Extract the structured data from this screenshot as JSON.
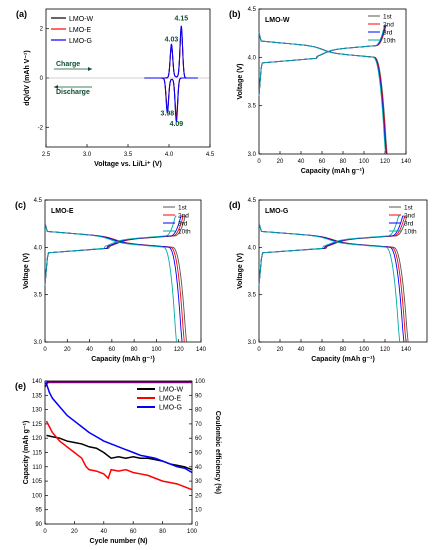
{
  "chart_data": [
    {
      "panel_label": "(a)",
      "type": "line",
      "title": "",
      "xlabel": "Voltage vs. Li/Li⁺ (V)",
      "ylabel": "dQ/dV (mAh V⁻¹)",
      "xlim": [
        2.5,
        4.5
      ],
      "ylim": [
        -2.8,
        2.8
      ],
      "xticks": [
        2.5,
        3.0,
        3.5,
        4.0,
        4.5
      ],
      "yticks": [
        -2,
        0,
        2
      ],
      "legend": {
        "placement": "top-left"
      },
      "annotations": [
        "Charge",
        "Discharge"
      ],
      "peak_labels": [
        {
          "text": "4.15",
          "x": 4.15,
          "y": 2.33
        },
        {
          "text": "4.03",
          "x": 4.03,
          "y": 1.48
        },
        {
          "text": "3.98",
          "x": 3.98,
          "y": -1.53
        },
        {
          "text": "4.09",
          "x": 4.09,
          "y": -1.95
        }
      ],
      "series": [
        {
          "name": "LMO-W",
          "color": "#000000",
          "charge": [
            [
              4.03,
              1.25
            ],
            [
              4.15,
              1.95
            ]
          ],
          "discharge": [
            [
              3.98,
              -1.25
            ],
            [
              4.09,
              -1.55
            ]
          ]
        },
        {
          "name": "LMO-E",
          "color": "#ff0000",
          "charge": [
            [
              4.03,
              1.3
            ],
            [
              4.15,
              2.0
            ]
          ],
          "discharge": [
            [
              3.98,
              -1.3
            ],
            [
              4.09,
              -1.6
            ]
          ]
        },
        {
          "name": "LMO-G",
          "color": "#0000ff",
          "charge": [
            [
              4.03,
              1.35
            ],
            [
              4.15,
              2.1
            ]
          ],
          "discharge": [
            [
              3.98,
              -1.4
            ],
            [
              4.09,
              -1.75
            ]
          ]
        }
      ]
    },
    {
      "panel_label": "(b)",
      "type": "line",
      "title": "LMO-W",
      "xlabel": "Capacity (mAh g⁻¹)",
      "ylabel": "Voltage (V)",
      "xlim": [
        0,
        140
      ],
      "ylim": [
        3.0,
        4.5
      ],
      "xticks": [
        0,
        20,
        40,
        60,
        80,
        100,
        120,
        140
      ],
      "yticks": [
        3.0,
        3.5,
        4.0,
        4.5
      ],
      "legend": {
        "placement": "top-right"
      },
      "series": [
        {
          "name": "1st",
          "color": "#555555",
          "capacity": 122
        },
        {
          "name": "2nd",
          "color": "#ff0000",
          "capacity": 121.5
        },
        {
          "name": "3rd",
          "color": "#0000ff",
          "capacity": 121
        },
        {
          "name": "10th",
          "color": "#00aaaa",
          "capacity": 120.5
        }
      ]
    },
    {
      "panel_label": "(c)",
      "type": "line",
      "title": "LMO-E",
      "xlabel": "Capacity (mAh g⁻¹)",
      "ylabel": "Voltage (V)",
      "xlim": [
        0,
        140
      ],
      "ylim": [
        3.0,
        4.5
      ],
      "xticks": [
        0,
        20,
        40,
        60,
        80,
        100,
        120,
        140
      ],
      "yticks": [
        3.0,
        3.5,
        4.0,
        4.5
      ],
      "legend": {
        "placement": "top-right"
      },
      "series": [
        {
          "name": "1st",
          "color": "#555555",
          "capacity": 127
        },
        {
          "name": "2nd",
          "color": "#ff0000",
          "capacity": 125
        },
        {
          "name": "3rd",
          "color": "#0000ff",
          "capacity": 123
        },
        {
          "name": "10th",
          "color": "#00aaaa",
          "capacity": 118
        }
      ]
    },
    {
      "panel_label": "(d)",
      "type": "line",
      "title": "LMO-G",
      "xlabel": "Capacity (mAh g⁻¹)",
      "ylabel": "Voltage (V)",
      "xlim": [
        0,
        160
      ],
      "ylim": [
        3.0,
        4.5
      ],
      "xticks": [
        0,
        20,
        40,
        60,
        80,
        100,
        120,
        140
      ],
      "yticks": [
        3.0,
        3.5,
        4.0,
        4.5
      ],
      "legend": {
        "placement": "top-right"
      },
      "series": [
        {
          "name": "1st",
          "color": "#555555",
          "capacity": 142
        },
        {
          "name": "2nd",
          "color": "#ff0000",
          "capacity": 140
        },
        {
          "name": "3rd",
          "color": "#0000ff",
          "capacity": 138
        },
        {
          "name": "10th",
          "color": "#00aaaa",
          "capacity": 134
        }
      ]
    },
    {
      "panel_label": "(e)",
      "type": "line",
      "title": "",
      "xlabel": "Cycle number (N)",
      "ylabel": "Capacity (mAh g⁻¹)",
      "y2label": "Coulombic efficiency (%)",
      "xlim": [
        0,
        100
      ],
      "ylim": [
        90,
        140
      ],
      "y2lim": [
        0,
        100
      ],
      "xticks": [
        0,
        20,
        40,
        60,
        80,
        100
      ],
      "yticks": [
        90,
        95,
        100,
        105,
        110,
        115,
        120,
        125,
        130,
        135,
        140
      ],
      "y2ticks": [
        0,
        10,
        20,
        30,
        40,
        50,
        60,
        70,
        80,
        90,
        100
      ],
      "legend": {
        "placement": "top-right"
      },
      "series": [
        {
          "name": "LMO-W",
          "color": "#000000",
          "x": [
            1,
            5,
            10,
            15,
            20,
            25,
            30,
            35,
            40,
            45,
            50,
            55,
            60,
            65,
            70,
            75,
            80,
            85,
            90,
            95,
            100
          ],
          "values": [
            121,
            120.5,
            120,
            119,
            118.5,
            118,
            117,
            116.5,
            115,
            113,
            113.5,
            113,
            113.5,
            113,
            113,
            112.5,
            112,
            111,
            110.5,
            110,
            109
          ]
        },
        {
          "name": "LMO-E",
          "color": "#ff0000",
          "x": [
            1,
            3,
            5,
            10,
            15,
            20,
            25,
            28,
            30,
            35,
            40,
            43,
            45,
            50,
            55,
            60,
            65,
            70,
            75,
            80,
            85,
            90,
            95,
            100
          ],
          "values": [
            126,
            124,
            122,
            119,
            117,
            115,
            113,
            110,
            109,
            108.5,
            107.5,
            106,
            109,
            108.5,
            109,
            108,
            107.5,
            107,
            106,
            105,
            104.5,
            104,
            103,
            102
          ]
        },
        {
          "name": "LMO-G",
          "color": "#0000ff",
          "x": [
            1,
            3,
            5,
            10,
            15,
            20,
            25,
            30,
            35,
            40,
            45,
            50,
            55,
            60,
            65,
            70,
            75,
            80,
            85,
            90,
            95,
            100
          ],
          "values": [
            139,
            136,
            134,
            131,
            128,
            126,
            124,
            122,
            120.5,
            119,
            118,
            117,
            116,
            115,
            114,
            113.5,
            113,
            112,
            111,
            110,
            109.5,
            108
          ]
        }
      ],
      "efficiency_series": [
        {
          "name": "LMO-W",
          "color": "#000000",
          "x": [
            0,
            2,
            100
          ],
          "values": [
            96,
            99,
            99
          ]
        },
        {
          "name": "LMO-E",
          "color": "#ff0000",
          "x": [
            0,
            2,
            100
          ],
          "values": [
            97,
            99,
            99
          ]
        },
        {
          "name": "LMO-G",
          "color": "#0000ff",
          "x": [
            0,
            2,
            100
          ],
          "values": [
            98,
            99.5,
            99.5
          ]
        }
      ]
    }
  ]
}
